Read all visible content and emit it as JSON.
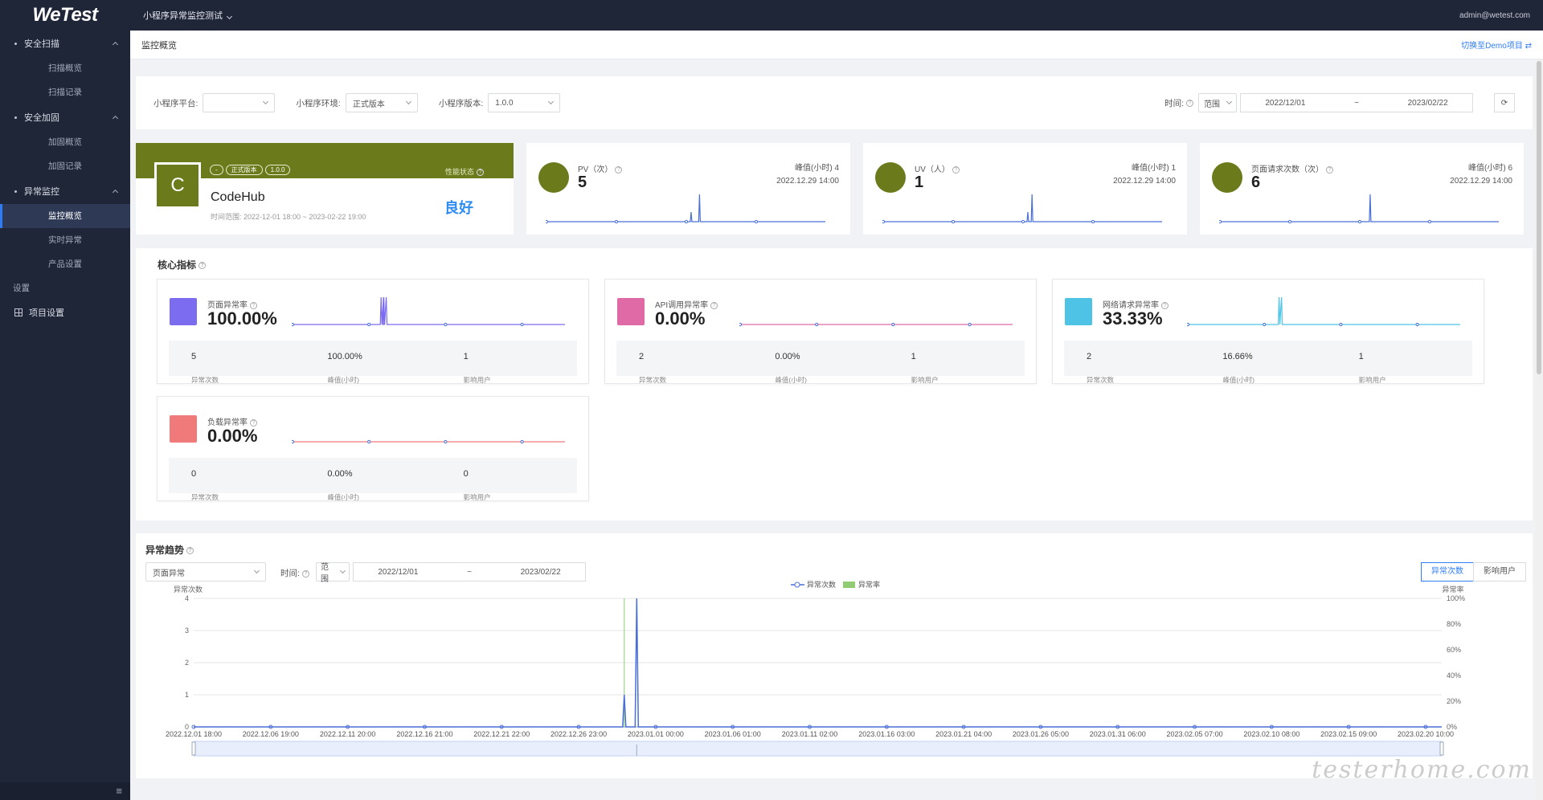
{
  "app": {
    "logo": "WeTest",
    "project": "小程序异常监控测试",
    "user": "admin@wetest.com"
  },
  "sidebar": {
    "groups": [
      {
        "label": "安全扫描",
        "items": [
          "扫描概览",
          "扫描记录"
        ]
      },
      {
        "label": "安全加固",
        "items": [
          "加固概览",
          "加固记录"
        ]
      },
      {
        "label": "异常监控",
        "items": [
          "监控概览",
          "实时异常",
          "产品设置"
        ]
      }
    ],
    "settings_label": "设置",
    "project_settings": "项目设置",
    "collapse_icon": "≡"
  },
  "crumb": {
    "title": "监控概览",
    "switch_demo": "切换至Demo项目"
  },
  "filters": {
    "platform_label": "小程序平台:",
    "platform_value": "",
    "env_label": "小程序环境:",
    "env_value": "正式版本",
    "version_label": "小程序版本:",
    "version_value": "1.0.0",
    "time_label": "时间:",
    "range_label": "范围",
    "start": "2022/12/01",
    "tilde": "~",
    "end": "2023/02/22"
  },
  "project": {
    "avatar": "C",
    "tags": [
      "-",
      "正式版本",
      "1.0.0"
    ],
    "perf_label": "性能状态",
    "name": "CodeHub",
    "range": "时间范围: 2022-12-01 18:00 ~ 2023-02-22 19:00",
    "status": "良好"
  },
  "stats": [
    {
      "title": "PV（次）",
      "value": "5",
      "peak": "峰值(小时) 4",
      "peak_time": "2022.12.29 14:00",
      "spikes": [
        0.52,
        0.55
      ]
    },
    {
      "title": "UV（人）",
      "value": "1",
      "peak": "峰值(小时) 1",
      "peak_time": "2022.12.29 14:00",
      "spikes": [
        0.52,
        0.535
      ]
    },
    {
      "title": "页面请求次数（次）",
      "value": "6",
      "peak": "峰值(小时) 6",
      "peak_time": "2022.12.29 14:00",
      "spikes": [
        0.54
      ]
    }
  ],
  "core": {
    "title": "核心指标",
    "cards": [
      {
        "title": "页面异常率",
        "value": "100.00%",
        "color": "#7b6cf0",
        "line": "#7b6cf0",
        "spikes": [
          0.33,
          0.34
        ],
        "f1": "5",
        "l1": "异常次数",
        "f2": "100.00%",
        "l2": "峰值(小时)",
        "f3": "1",
        "l3": "影响用户"
      },
      {
        "title": "API调用异常率",
        "value": "0.00%",
        "color": "#e06aa6",
        "line": "#e06aa6",
        "spikes": [],
        "f1": "2",
        "l1": "异常次数",
        "f2": "0.00%",
        "l2": "峰值(小时)",
        "f3": "1",
        "l3": "影响用户"
      },
      {
        "title": "网络请求异常率",
        "value": "33.33%",
        "color": "#4ec3e6",
        "line": "#4ec3e6",
        "spikes": [
          0.34
        ],
        "f1": "2",
        "l1": "异常次数",
        "f2": "16.66%",
        "l2": "峰值(小时)",
        "f3": "1",
        "l3": "影响用户"
      },
      {
        "title": "负载异常率",
        "value": "0.00%",
        "color": "#f07a7a",
        "line": "#f07a7a",
        "spikes": [],
        "f1": "0",
        "l1": "异常次数",
        "f2": "0.00%",
        "l2": "峰值(小时)",
        "f3": "0",
        "l3": "影响用户"
      }
    ]
  },
  "trend": {
    "title": "异常趋势",
    "type_value": "页面异常",
    "time_label": "时间:",
    "range_label": "范围",
    "start": "2022/12/01",
    "tilde": "~",
    "end": "2023/02/22",
    "btn_count": "异常次数",
    "btn_users": "影响用户"
  },
  "chart_data": {
    "type": "line",
    "legend": [
      "异常次数",
      "异常率"
    ],
    "ylabel": "异常次数",
    "y2label": "异常率",
    "yticks": [
      "4",
      "3",
      "2",
      "1",
      "0"
    ],
    "y2ticks": [
      "100%",
      "80%",
      "60%",
      "40%",
      "20%",
      "0%"
    ],
    "x": [
      "2022.12.01 18:00",
      "2022.12.06 19:00",
      "2022.12.11 20:00",
      "2022.12.16 21:00",
      "2022.12.21 22:00",
      "2022.12.26 23:00",
      "2023.01.01 00:00",
      "2023.01.06 01:00",
      "2023.01.11 02:00",
      "2023.01.16 03:00",
      "2023.01.21 04:00",
      "2023.01.26 05:00",
      "2023.01.31 06:00",
      "2023.02.05 07:00",
      "2023.02.10 08:00",
      "2023.02.15 09:00",
      "2023.02.20 10:00"
    ],
    "ylim": [
      0,
      4
    ],
    "series": [
      {
        "name": "异常次数",
        "peaks": [
          {
            "x": 0.345,
            "y": 1
          },
          {
            "x": 0.355,
            "y": 4
          }
        ]
      },
      {
        "name": "异常率",
        "peaks": [
          {
            "x": 0.345,
            "y": 100
          }
        ]
      }
    ]
  },
  "watermark": "testerhome.com"
}
